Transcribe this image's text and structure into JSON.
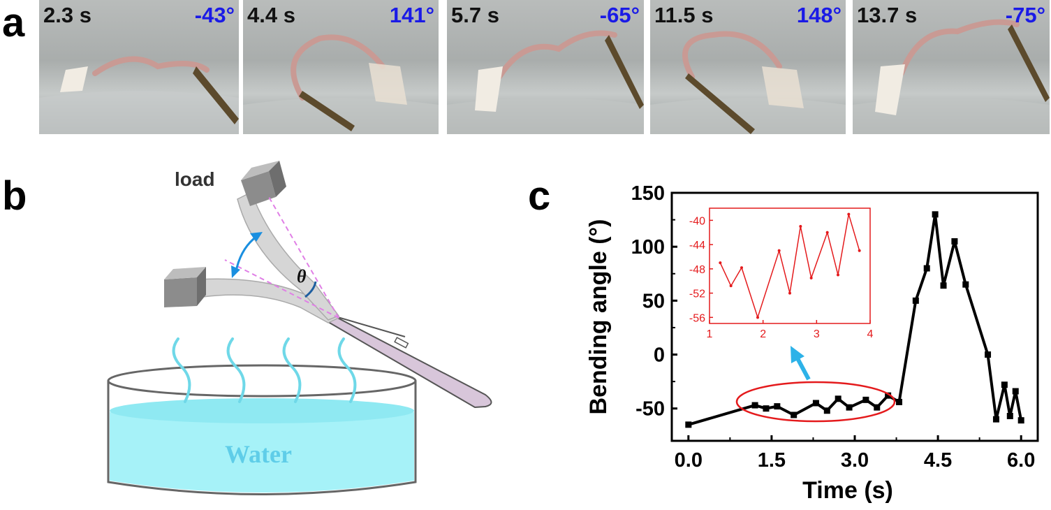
{
  "panels": {
    "a": {
      "letter": "a",
      "frames": [
        {
          "time": "2.3 s",
          "angle": "-43°"
        },
        {
          "time": "4.4 s",
          "angle": "141°"
        },
        {
          "time": "5.7 s",
          "angle": "-65°"
        },
        {
          "time": "11.5 s",
          "angle": "148°"
        },
        {
          "time": "13.7 s",
          "angle": "-75°"
        }
      ]
    },
    "b": {
      "letter": "b",
      "load_label": "load",
      "theta_label": "θ",
      "water_label": "Water"
    },
    "c": {
      "letter": "c"
    }
  },
  "colors": {
    "time_text": "#111111",
    "angle_text": "#1a1ae6",
    "main_series": "#000000",
    "inset": "#e41a1c",
    "water": "#a6f2f8",
    "steam": "#6fd8e8",
    "arrow": "#1a8fe0",
    "tweezer": "#d8c6da",
    "guide_lines": "#e07fe6"
  },
  "chart_data": [
    {
      "type": "line",
      "xlabel": "Time (s)",
      "ylabel": "Bending angle (°)",
      "xlim": [
        -0.3,
        6.3
      ],
      "ylim": [
        -80,
        150
      ],
      "xticks": [
        "0.0",
        "1.5",
        "3.0",
        "4.5",
        "6.0"
      ],
      "xtick_values": [
        0,
        1.5,
        3.0,
        4.5,
        6.0
      ],
      "yticks": [
        "-50",
        "0",
        "50",
        "100",
        "150"
      ],
      "ytick_values": [
        -50,
        0,
        50,
        100,
        150
      ],
      "series": [
        {
          "x": [
            0.0,
            1.2,
            1.4,
            1.6,
            1.9,
            2.3,
            2.5,
            2.7,
            2.9,
            3.2,
            3.4,
            3.6,
            3.8,
            4.1,
            4.3,
            4.45,
            4.6,
            4.8,
            5.0,
            5.4,
            5.55,
            5.7,
            5.8,
            5.9,
            6.0
          ],
          "y": [
            -65,
            -47,
            -50,
            -48,
            -56,
            -45,
            -52,
            -41,
            -49,
            -42,
            -49,
            -38,
            -44,
            50,
            80,
            130,
            64,
            105,
            65,
            0,
            -60,
            -28,
            -57,
            -34,
            -61
          ]
        }
      ],
      "annotation": "red ellipse highlighting the 1.2–3.8 s range, linked to the inset by a blue arrow"
    },
    {
      "type": "line",
      "title": "",
      "xlim": [
        1,
        4
      ],
      "ylim": [
        -57,
        -38
      ],
      "xticks": [
        "1",
        "2",
        "3",
        "4"
      ],
      "xtick_values": [
        1,
        2,
        3,
        4
      ],
      "yticks": [
        "-40",
        "-44",
        "-48",
        "-52",
        "-56"
      ],
      "ytick_values": [
        -40,
        -44,
        -48,
        -52,
        -56
      ],
      "series": [
        {
          "x": [
            1.2,
            1.4,
            1.6,
            1.9,
            2.3,
            2.5,
            2.7,
            2.9,
            3.2,
            3.4,
            3.6,
            3.8
          ],
          "y": [
            -47,
            -50.8,
            -47.8,
            -56,
            -45,
            -52,
            -41,
            -49.5,
            -42,
            -49,
            -39,
            -45
          ]
        }
      ]
    }
  ]
}
